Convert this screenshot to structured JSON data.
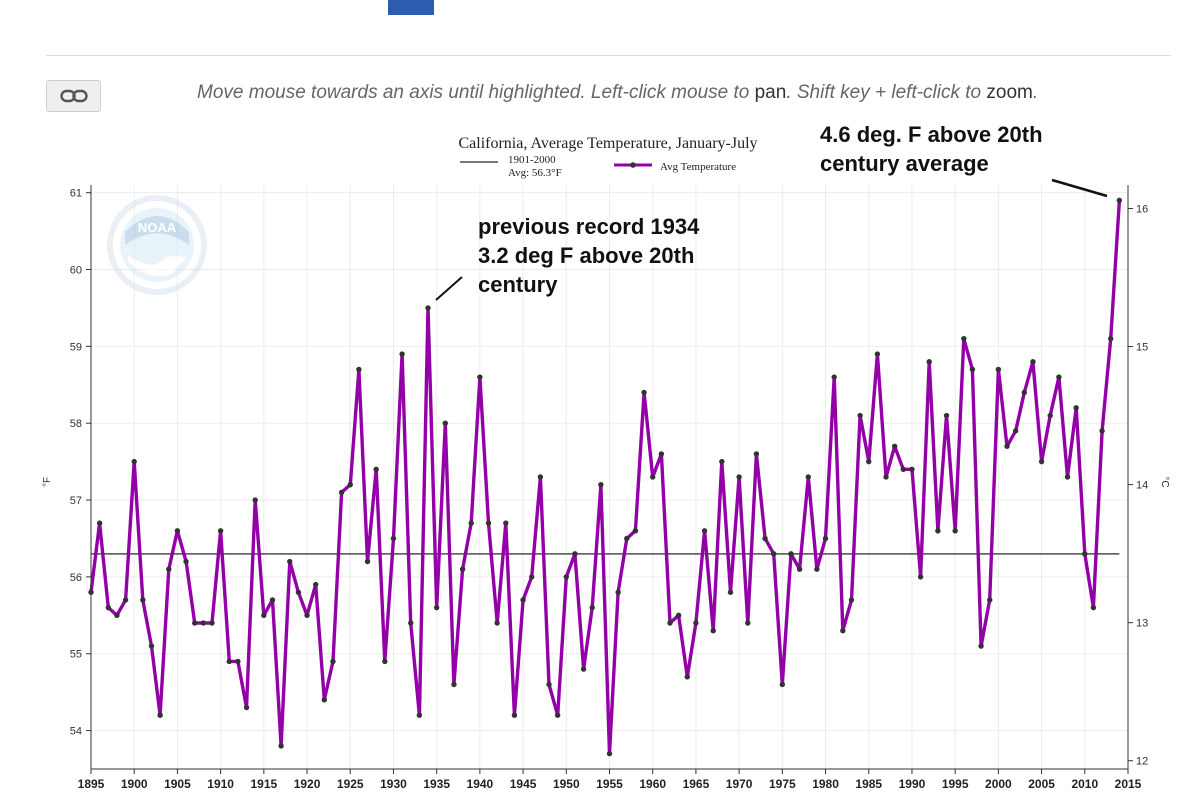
{
  "toolbar": {
    "link_icon": "link-icon",
    "instr_1": "Move mouse towards an axis until highlighted. Left-click mouse to ",
    "instr_pan": "pan",
    "instr_2": ". Shift key + left-click to ",
    "instr_zoom": "zoom",
    "instr_3": "."
  },
  "colors": {
    "series": "#9400a8",
    "baseline": "#666666",
    "accent_tab": "#2b5cad",
    "marker": "#333333"
  },
  "chart_data": {
    "type": "line",
    "title": "California, Average Temperature, January-July",
    "ylabel": "°F",
    "y2label": "°C",
    "x": [
      1895,
      1896,
      1897,
      1898,
      1899,
      1900,
      1901,
      1902,
      1903,
      1904,
      1905,
      1906,
      1907,
      1908,
      1909,
      1910,
      1911,
      1912,
      1913,
      1914,
      1915,
      1916,
      1917,
      1918,
      1919,
      1920,
      1921,
      1922,
      1923,
      1924,
      1925,
      1926,
      1927,
      1928,
      1929,
      1930,
      1931,
      1932,
      1933,
      1934,
      1935,
      1936,
      1937,
      1938,
      1939,
      1940,
      1941,
      1942,
      1943,
      1944,
      1945,
      1946,
      1947,
      1948,
      1949,
      1950,
      1951,
      1952,
      1953,
      1954,
      1955,
      1956,
      1957,
      1958,
      1959,
      1960,
      1961,
      1962,
      1963,
      1964,
      1965,
      1966,
      1967,
      1968,
      1969,
      1970,
      1971,
      1972,
      1973,
      1974,
      1975,
      1976,
      1977,
      1978,
      1979,
      1980,
      1981,
      1982,
      1983,
      1984,
      1985,
      1986,
      1987,
      1988,
      1989,
      1990,
      1991,
      1992,
      1993,
      1994,
      1995,
      1996,
      1997,
      1998,
      1999,
      2000,
      2001,
      2002,
      2003,
      2004,
      2005,
      2006,
      2007,
      2008,
      2009,
      2010,
      2011,
      2012,
      2013,
      2014
    ],
    "series": [
      {
        "name": "Avg Temperature",
        "values": [
          55.8,
          56.7,
          55.6,
          55.5,
          55.7,
          57.5,
          55.7,
          55.1,
          54.2,
          56.1,
          56.6,
          56.2,
          55.4,
          55.4,
          55.4,
          56.6,
          54.9,
          54.9,
          54.3,
          57.0,
          55.5,
          55.7,
          53.8,
          56.2,
          55.8,
          55.5,
          55.9,
          54.4,
          54.9,
          57.1,
          57.2,
          58.7,
          56.2,
          57.4,
          54.9,
          56.5,
          58.9,
          55.4,
          54.2,
          59.5,
          55.6,
          58.0,
          54.6,
          56.1,
          56.7,
          58.6,
          56.7,
          55.4,
          56.7,
          54.2,
          55.7,
          56.0,
          57.3,
          54.6,
          54.2,
          56.0,
          56.3,
          54.8,
          55.6,
          57.2,
          53.7,
          55.8,
          56.5,
          56.6,
          58.4,
          57.3,
          57.6,
          55.4,
          55.5,
          54.7,
          55.4,
          56.6,
          55.3,
          57.5,
          55.8,
          57.3,
          55.4,
          57.6,
          56.5,
          56.3,
          54.6,
          56.3,
          56.1,
          57.3,
          56.1,
          56.5,
          58.6,
          55.3,
          55.7,
          58.1,
          57.5,
          58.9,
          57.3,
          57.7,
          57.4,
          57.4,
          56.0,
          58.8,
          56.6,
          58.1,
          56.6,
          59.1,
          58.7,
          55.1,
          55.7,
          58.7,
          57.7,
          57.9,
          58.4,
          58.8,
          57.5,
          58.1,
          58.6,
          57.3,
          58.2,
          56.3,
          55.6,
          57.9,
          59.1,
          60.9
        ]
      }
    ],
    "baseline": {
      "name": "1901-2000",
      "label": "Avg: 56.3°F",
      "value": 56.3
    },
    "xlim": [
      1895,
      2015
    ],
    "ylim": [
      53.5,
      61.1
    ],
    "y2lim": [
      11.94,
      16.17
    ],
    "xticks": [
      "1895",
      "1900",
      "1905",
      "1910",
      "1915",
      "1920",
      "1925",
      "1930",
      "1935",
      "1940",
      "1945",
      "1950",
      "1955",
      "1960",
      "1965",
      "1970",
      "1975",
      "1980",
      "1985",
      "1990",
      "1995",
      "2000",
      "2005",
      "2010",
      "2015"
    ],
    "yticks": [
      "54",
      "55",
      "56",
      "57",
      "58",
      "59",
      "60",
      "61"
    ],
    "y2ticks": [
      "12",
      "13",
      "14",
      "15",
      "16"
    ],
    "grid": true,
    "legend": "top-center",
    "annotations": [
      {
        "lines": [
          "previous record 1934",
          "3.2 deg F above 20th",
          "century"
        ],
        "year": 1934
      },
      {
        "lines": [
          "4.6 deg. F above 20th",
          "century average"
        ],
        "year": 2014
      }
    ]
  }
}
